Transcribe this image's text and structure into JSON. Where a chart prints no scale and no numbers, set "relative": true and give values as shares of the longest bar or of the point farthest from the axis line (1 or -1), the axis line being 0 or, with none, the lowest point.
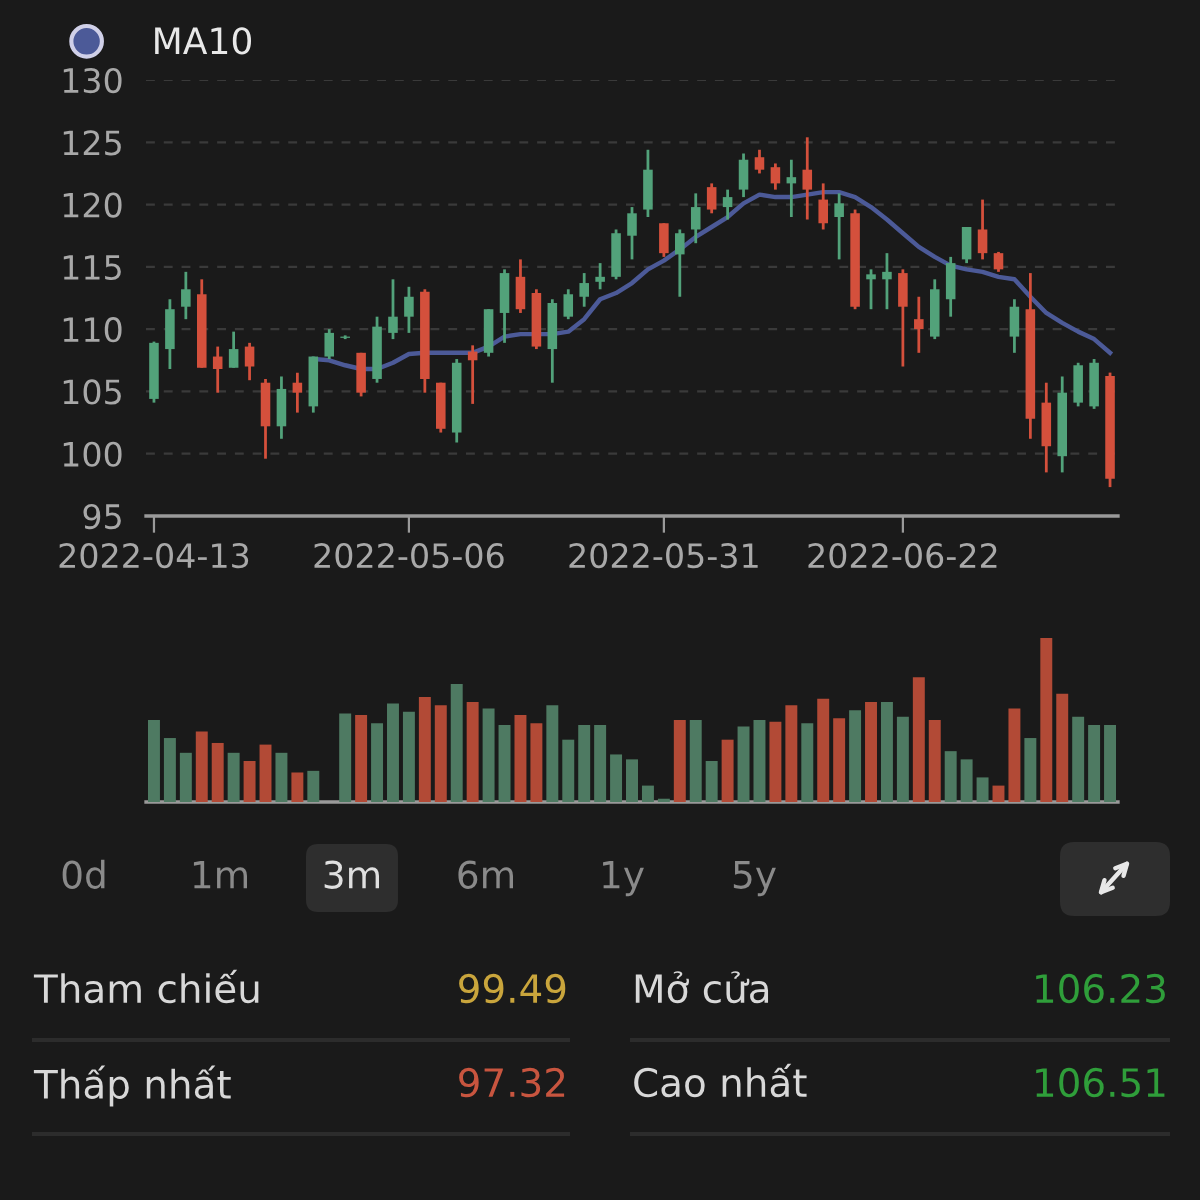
{
  "chart_data": [
    {
      "type": "candlestick",
      "categories": [
        "2022-04-13",
        null,
        null,
        null,
        null,
        null,
        null,
        null,
        null,
        null,
        null,
        null,
        null,
        null,
        null,
        null,
        "2022-05-06",
        null,
        null,
        null,
        null,
        null,
        null,
        null,
        null,
        null,
        null,
        null,
        null,
        null,
        null,
        null,
        "2022-05-31",
        null,
        null,
        null,
        null,
        null,
        null,
        null,
        null,
        null,
        null,
        null,
        null,
        null,
        null,
        "2022-06-22",
        null,
        null,
        null,
        null,
        null,
        null,
        null,
        null,
        null,
        null,
        null,
        null,
        null
      ],
      "ohlc": [
        [
          104.4,
          109.0,
          104.1,
          108.9
        ],
        [
          108.4,
          112.4,
          106.8,
          111.6
        ],
        [
          111.8,
          114.6,
          110.8,
          113.2
        ],
        [
          112.8,
          114.0,
          106.9,
          106.9
        ],
        [
          107.8,
          108.6,
          104.9,
          106.8
        ],
        [
          106.9,
          109.8,
          106.9,
          108.4
        ],
        [
          108.6,
          108.9,
          105.9,
          107.0
        ],
        [
          105.7,
          106.0,
          99.6,
          102.2
        ],
        [
          102.2,
          106.2,
          101.2,
          105.2
        ],
        [
          105.7,
          106.5,
          103.3,
          104.9
        ],
        [
          103.8,
          107.8,
          103.3,
          107.8
        ],
        [
          107.8,
          110.0,
          107.6,
          109.7
        ],
        [
          109.3,
          109.5,
          109.2,
          109.4
        ],
        [
          108.1,
          108.1,
          104.6,
          104.9
        ],
        [
          106.0,
          111.0,
          105.7,
          110.2
        ],
        [
          109.7,
          114.0,
          109.2,
          111.0
        ],
        [
          111.0,
          113.4,
          109.7,
          112.6
        ],
        [
          113.0,
          113.2,
          104.9,
          106.0
        ],
        [
          105.7,
          105.7,
          101.7,
          102.0
        ],
        [
          101.7,
          107.6,
          100.9,
          107.3
        ],
        [
          108.2,
          108.7,
          104.0,
          107.5
        ],
        [
          108.1,
          111.6,
          107.8,
          111.6
        ],
        [
          111.3,
          114.8,
          108.9,
          114.5
        ],
        [
          114.2,
          115.6,
          111.3,
          111.6
        ],
        [
          112.9,
          113.2,
          108.4,
          108.6
        ],
        [
          108.4,
          112.4,
          105.7,
          112.1
        ],
        [
          111.0,
          113.2,
          110.8,
          112.8
        ],
        [
          112.6,
          114.5,
          111.8,
          113.7
        ],
        [
          113.8,
          115.3,
          113.2,
          114.2
        ],
        [
          114.2,
          118.0,
          114.0,
          117.7
        ],
        [
          117.5,
          119.8,
          115.6,
          119.3
        ],
        [
          119.6,
          124.4,
          119.0,
          122.8
        ],
        [
          118.5,
          118.5,
          115.8,
          116.1
        ],
        [
          116.0,
          118.0,
          112.6,
          117.7
        ],
        [
          118.0,
          120.9,
          116.9,
          119.8
        ],
        [
          121.4,
          121.7,
          119.3,
          119.6
        ],
        [
          119.8,
          121.2,
          118.8,
          120.6
        ],
        [
          121.2,
          124.1,
          120.6,
          123.6
        ],
        [
          123.8,
          124.4,
          122.5,
          122.8
        ],
        [
          123.0,
          123.3,
          121.2,
          121.7
        ],
        [
          121.7,
          123.6,
          119.0,
          122.2
        ],
        [
          122.8,
          125.4,
          118.8,
          121.2
        ],
        [
          120.4,
          121.7,
          118.0,
          118.5
        ],
        [
          119.0,
          120.9,
          115.6,
          120.1
        ],
        [
          119.3,
          119.6,
          111.6,
          111.8
        ],
        [
          114.0,
          114.8,
          111.6,
          114.4
        ],
        [
          114.0,
          116.1,
          111.6,
          114.6
        ],
        [
          114.5,
          114.8,
          107.0,
          111.8
        ],
        [
          110.8,
          112.6,
          108.1,
          110.0
        ],
        [
          109.4,
          114.0,
          109.2,
          113.2
        ],
        [
          112.4,
          115.8,
          111.0,
          115.3
        ],
        [
          115.6,
          118.2,
          115.3,
          118.2
        ],
        [
          118.0,
          120.4,
          115.6,
          116.1
        ],
        [
          116.1,
          116.2,
          114.6,
          114.8
        ],
        [
          109.4,
          112.4,
          108.1,
          111.8
        ],
        [
          111.6,
          114.5,
          101.2,
          102.8
        ],
        [
          104.1,
          105.7,
          98.5,
          100.6
        ],
        [
          99.8,
          106.2,
          98.5,
          104.9
        ],
        [
          104.1,
          107.3,
          103.8,
          107.1
        ],
        [
          103.8,
          107.6,
          103.6,
          107.3
        ],
        [
          106.23,
          106.51,
          97.32,
          98.0
        ]
      ],
      "colors": [
        "#52a27a",
        "#52a27a",
        "#52a27a",
        "#d4503c",
        "#d4503c",
        "#52a27a",
        "#d4503c",
        "#d4503c",
        "#52a27a",
        "#d4503c",
        "#52a27a",
        "#52a27a",
        "#52a27a",
        "#d4503c",
        "#52a27a",
        "#52a27a",
        "#52a27a",
        "#d4503c",
        "#d4503c",
        "#52a27a",
        "#d4503c",
        "#52a27a",
        "#52a27a",
        "#d4503c",
        "#d4503c",
        "#52a27a",
        "#52a27a",
        "#52a27a",
        "#52a27a",
        "#52a27a",
        "#52a27a",
        "#52a27a",
        "#d4503c",
        "#52a27a",
        "#52a27a",
        "#d4503c",
        "#52a27a",
        "#52a27a",
        "#d4503c",
        "#d4503c",
        "#52a27a",
        "#d4503c",
        "#d4503c",
        "#52a27a",
        "#d4503c",
        "#52a27a",
        "#52a27a",
        "#d4503c",
        "#d4503c",
        "#52a27a",
        "#52a27a",
        "#52a27a",
        "#d4503c",
        "#d4503c",
        "#52a27a",
        "#d4503c",
        "#d4503c",
        "#52a27a",
        "#52a27a",
        "#52a27a",
        "#d4503c"
      ],
      "series": [
        {
          "name": "MA10",
          "type": "line",
          "color": "#4c5a98",
          "values": [
            null,
            null,
            null,
            null,
            null,
            null,
            null,
            null,
            null,
            null,
            107.6,
            107.5,
            107.1,
            106.8,
            106.8,
            107.3,
            108.0,
            108.1,
            108.1,
            108.1,
            108.1,
            108.6,
            109.4,
            109.6,
            109.6,
            109.6,
            109.8,
            110.8,
            112.4,
            112.9,
            113.7,
            114.8,
            115.5,
            116.4,
            117.4,
            118.2,
            119.0,
            120.1,
            120.8,
            120.6,
            120.6,
            120.8,
            121.0,
            121.0,
            120.6,
            119.8,
            118.8,
            117.7,
            116.6,
            115.8,
            115.1,
            114.8,
            114.6,
            114.2,
            114.0,
            112.6,
            111.3,
            110.5,
            109.8,
            109.2,
            108.1
          ]
        }
      ],
      "ylim": [
        95,
        130
      ],
      "yticks": [
        95,
        100,
        105,
        110,
        115,
        120,
        125,
        130
      ],
      "grid": "y",
      "legend": "top left"
    },
    {
      "type": "bar",
      "relative": true,
      "categories": [
        null,
        null,
        null,
        null,
        null,
        null,
        null,
        null,
        null,
        null,
        null,
        null,
        null,
        null,
        null,
        null,
        null,
        null,
        null,
        null,
        null,
        null,
        null,
        null,
        null,
        null,
        null,
        null,
        null,
        null,
        null,
        null,
        null,
        null,
        null,
        null,
        null,
        null,
        null,
        null,
        null,
        null,
        null,
        null,
        null,
        null,
        null,
        null,
        null,
        null,
        null,
        null,
        null,
        null,
        null,
        null,
        null,
        null,
        null,
        null,
        null
      ],
      "values": [
        0.5,
        0.39,
        0.3,
        0.43,
        0.36,
        0.3,
        0.25,
        0.35,
        0.3,
        0.18,
        0.19,
        0,
        0.54,
        0.53,
        0.48,
        0.6,
        0.55,
        0.64,
        0.59,
        0.72,
        0.61,
        0.57,
        0.47,
        0.53,
        0.48,
        0.59,
        0.38,
        0.47,
        0.47,
        0.29,
        0.26,
        0.1,
        0.02,
        0.5,
        0.5,
        0.25,
        0.38,
        0.46,
        0.5,
        0.49,
        0.59,
        0.48,
        0.63,
        0.51,
        0.56,
        0.61,
        0.61,
        0.52,
        0.76,
        0.5,
        0.31,
        0.26,
        0.15,
        0.1,
        0.57,
        0.39,
        1,
        0.66,
        0.52,
        0.47,
        0.47
      ],
      "colors": [
        "#4e7a62",
        "#4e7a62",
        "#4e7a62",
        "#b24a36",
        "#b24a36",
        "#4e7a62",
        "#b24a36",
        "#b24a36",
        "#4e7a62",
        "#b24a36",
        "#4e7a62",
        "#4e7a62",
        "#4e7a62",
        "#b24a36",
        "#4e7a62",
        "#4e7a62",
        "#4e7a62",
        "#b24a36",
        "#b24a36",
        "#4e7a62",
        "#b24a36",
        "#4e7a62",
        "#4e7a62",
        "#b24a36",
        "#b24a36",
        "#4e7a62",
        "#4e7a62",
        "#4e7a62",
        "#4e7a62",
        "#4e7a62",
        "#4e7a62",
        "#4e7a62",
        "#4e7a62",
        "#b24a36",
        "#4e7a62",
        "#4e7a62",
        "#b24a36",
        "#4e7a62",
        "#4e7a62",
        "#b24a36",
        "#b24a36",
        "#4e7a62",
        "#b24a36",
        "#b24a36",
        "#4e7a62",
        "#b24a36",
        "#4e7a62",
        "#4e7a62",
        "#b24a36",
        "#b24a36",
        "#4e7a62",
        "#4e7a62",
        "#4e7a62",
        "#b24a36",
        "#b24a36",
        "#4e7a62",
        "#b24a36",
        "#b24a36",
        "#4e7a62",
        "#4e7a62",
        "#4e7a62"
      ]
    },
    {
      "type": "other",
      "annotations": [
        "0d",
        "1m",
        "3m",
        "6m",
        "1y",
        "5y",
        "Tham chiếu",
        "99.49",
        "Mở cửa",
        "106.23",
        "Thấp nhất",
        "97.32",
        "Cao nhất",
        "106.51"
      ]
    }
  ]
}
